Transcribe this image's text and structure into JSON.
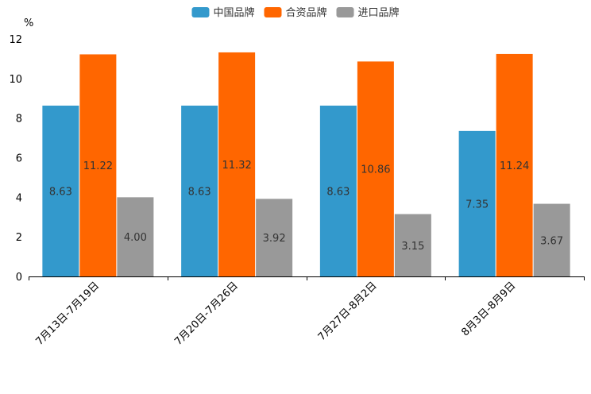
{
  "chart_data": {
    "type": "bar",
    "title": "",
    "xlabel": "",
    "ylabel": "",
    "unit_label": "%",
    "ylim": [
      0,
      12
    ],
    "yticks": [
      0,
      2,
      4,
      6,
      8,
      10,
      12
    ],
    "grid": false,
    "legend_position": "top-center",
    "categories": [
      "7月13日-7月19日",
      "7月20日-7月26日",
      "7月27日-8月2日",
      "8月3日-8月9日"
    ],
    "series": [
      {
        "name": "中国品牌",
        "color": "#3399cc",
        "values": [
          8.63,
          8.63,
          8.63,
          7.35
        ],
        "labels": [
          "8.63",
          "8.63",
          "8.63",
          "7.35"
        ]
      },
      {
        "name": "合资品牌",
        "color": "#ff6600",
        "values": [
          11.22,
          11.32,
          10.86,
          11.24
        ],
        "labels": [
          "11.22",
          "11.32",
          "10.86",
          "11.24"
        ]
      },
      {
        "name": "进口品牌",
        "color": "#999999",
        "values": [
          4.0,
          3.92,
          3.15,
          3.67
        ],
        "labels": [
          "4.00",
          "3.92",
          "3.15",
          "3.67"
        ]
      }
    ]
  }
}
